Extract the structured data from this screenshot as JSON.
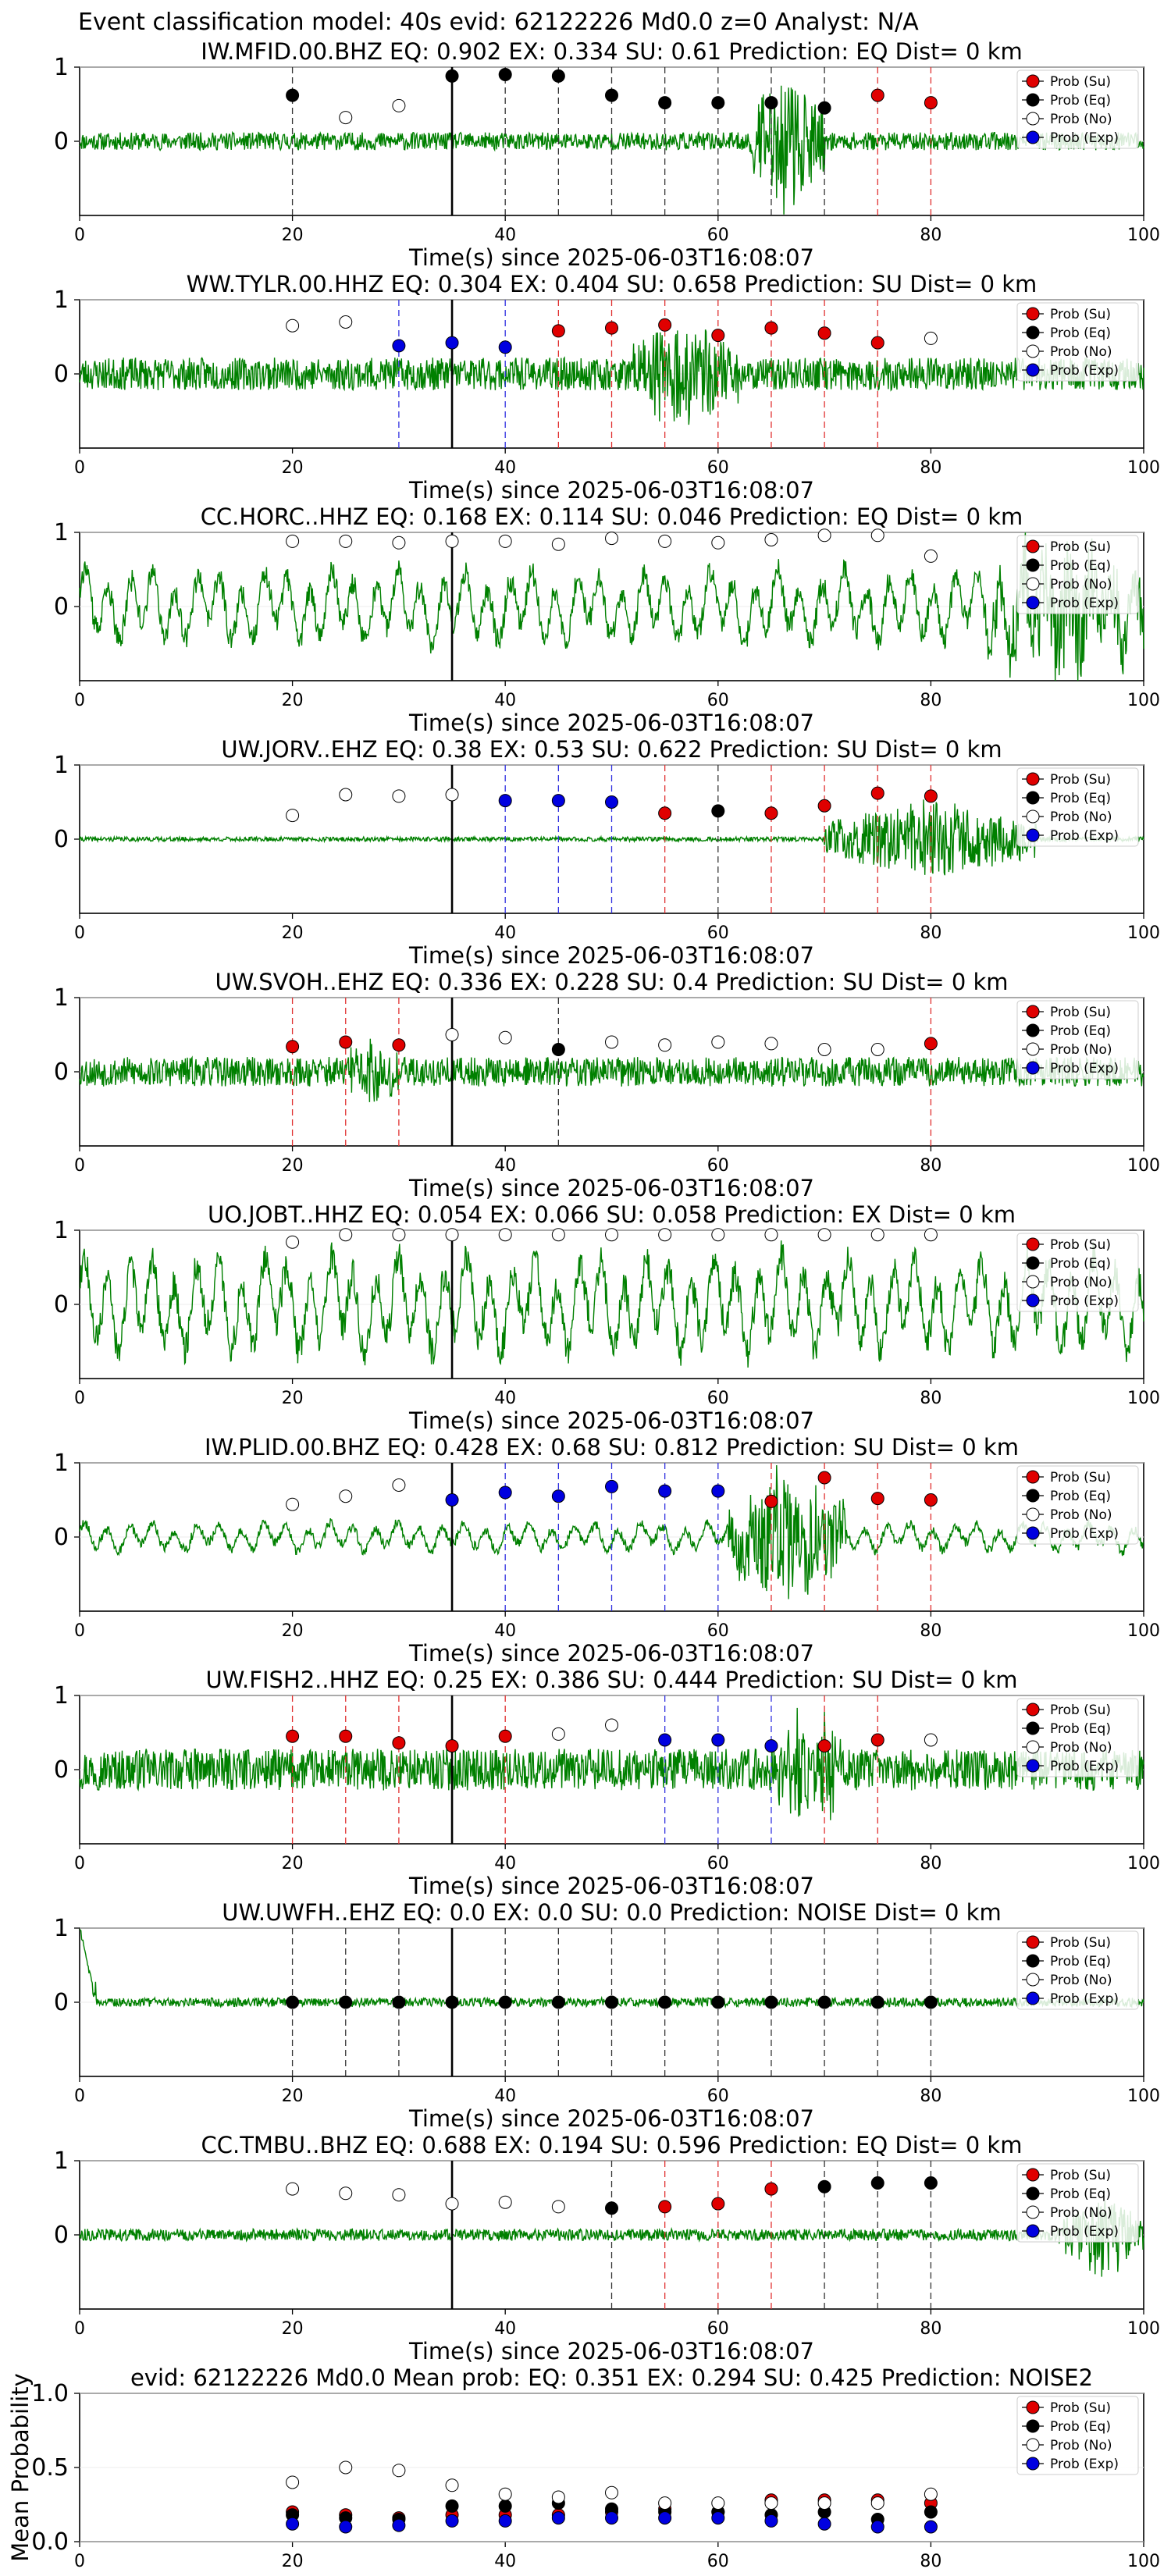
{
  "figure_title": "Event classification model: 40s evid: 62122226 Md0.0 z=0 Analyst: N/A",
  "legend": {
    "entries": [
      {
        "label": "Prob (Su)",
        "color": "#e00000",
        "filled": true
      },
      {
        "label": "Prob (Eq)",
        "color": "#000000",
        "filled": true
      },
      {
        "label": "Prob (No)",
        "color": "#ffffff",
        "filled": false
      },
      {
        "label": "Prob (Exp)",
        "color": "#0000e0",
        "filled": true
      }
    ],
    "placement": "top-right"
  },
  "colors": {
    "waveform": "#008000",
    "su": "#e00000",
    "eq": "#000000",
    "no": "#ffffff",
    "exp": "#0000e0",
    "gridline": "#eeeeee"
  },
  "chart_data": [
    {
      "type": "scatter",
      "title": "IW.MFID.00.BHZ   EQ: 0.902  EX: 0.334  SU: 0.61   Prediction: EQ    Dist= 0 km",
      "xlabel": "Time(s) since 2025-06-03T16:08:07",
      "xlim": [
        0,
        100
      ],
      "ylim": [
        -1,
        1
      ],
      "xticks": [
        "0",
        "20",
        "40",
        "60",
        "80",
        "100"
      ],
      "yticks": [
        "0",
        "1"
      ],
      "origin_time": 35,
      "waveform": {
        "style": "noise-burst",
        "amp": 0.12,
        "burst_start": 63,
        "burst_end": 70,
        "burst_amp": 0.95,
        "seed": 11
      },
      "series": [
        {
          "x": [
            20,
            25,
            30,
            35,
            40,
            45,
            50,
            55,
            60,
            65,
            70,
            75,
            80
          ],
          "y": [
            0.62,
            0.32,
            0.48,
            0.88,
            0.9,
            0.88,
            0.62,
            0.52,
            0.52,
            0.52,
            0.45,
            0.62,
            0.52
          ],
          "cls": [
            "eq",
            "no",
            "no",
            "eq",
            "eq",
            "eq",
            "eq",
            "eq",
            "eq",
            "eq",
            "eq",
            "su",
            "su"
          ]
        }
      ]
    },
    {
      "type": "scatter",
      "title": "WW.TYLR.00.HHZ   EQ: 0.304  EX: 0.404  SU: 0.658   Prediction: SU    Dist= 0 km",
      "xlabel": "Time(s) since 2025-06-03T16:08:07",
      "xlim": [
        0,
        100
      ],
      "ylim": [
        -1,
        1
      ],
      "xticks": [
        "0",
        "20",
        "40",
        "60",
        "80",
        "100"
      ],
      "yticks": [
        "0",
        "1"
      ],
      "origin_time": 35,
      "waveform": {
        "style": "noise-burst",
        "amp": 0.22,
        "burst_start": 52,
        "burst_end": 62,
        "burst_amp": 0.65,
        "seed": 23
      },
      "series": [
        {
          "x": [
            20,
            25,
            30,
            35,
            40,
            45,
            50,
            55,
            60,
            65,
            70,
            75,
            80
          ],
          "y": [
            0.65,
            0.7,
            0.38,
            0.42,
            0.36,
            0.58,
            0.62,
            0.66,
            0.52,
            0.62,
            0.55,
            0.42,
            0.48
          ],
          "cls": [
            "no",
            "no",
            "exp",
            "exp",
            "exp",
            "su",
            "su",
            "su",
            "su",
            "su",
            "su",
            "su",
            "no"
          ]
        }
      ]
    },
    {
      "type": "scatter",
      "title": "CC.HORC..HHZ   EQ: 0.168  EX: 0.114  SU: 0.046   Prediction: EQ    Dist= 0 km",
      "xlabel": "Time(s) since 2025-06-03T16:08:07",
      "xlim": [
        0,
        100
      ],
      "ylim": [
        -1,
        1
      ],
      "xticks": [
        "0",
        "20",
        "40",
        "60",
        "80",
        "100"
      ],
      "yticks": [
        "0",
        "1"
      ],
      "origin_time": 35,
      "waveform": {
        "style": "oscillating",
        "amp": 0.45,
        "burst_start": 85,
        "burst_end": 100,
        "burst_amp": 0.75,
        "seed": 37
      },
      "series": [
        {
          "x": [
            20,
            25,
            30,
            35,
            40,
            45,
            50,
            55,
            60,
            65,
            70,
            75,
            80
          ],
          "y": [
            0.88,
            0.88,
            0.86,
            0.88,
            0.88,
            0.84,
            0.92,
            0.88,
            0.86,
            0.9,
            0.96,
            0.96,
            0.68
          ],
          "cls": [
            "no",
            "no",
            "no",
            "no",
            "no",
            "no",
            "no",
            "no",
            "no",
            "no",
            "no",
            "no",
            "no"
          ]
        }
      ]
    },
    {
      "type": "scatter",
      "title": "UW.JORV..EHZ   EQ: 0.38  EX: 0.53  SU: 0.622   Prediction: SU    Dist= 0 km",
      "xlabel": "Time(s) since 2025-06-03T16:08:07",
      "xlim": [
        0,
        100
      ],
      "ylim": [
        -1,
        1
      ],
      "xticks": [
        "0",
        "20",
        "40",
        "60",
        "80",
        "100"
      ],
      "yticks": [
        "0",
        "1"
      ],
      "origin_time": 35,
      "waveform": {
        "style": "quiet-burst",
        "amp": 0.03,
        "burst_start": 70,
        "burst_end": 90,
        "burst_amp": 0.55,
        "seed": 41
      },
      "series": [
        {
          "x": [
            20,
            25,
            30,
            35,
            40,
            45,
            50,
            55,
            60,
            65,
            70,
            75,
            80
          ],
          "y": [
            0.32,
            0.6,
            0.58,
            0.6,
            0.52,
            0.52,
            0.5,
            0.35,
            0.38,
            0.35,
            0.45,
            0.62,
            0.58
          ],
          "cls": [
            "no",
            "no",
            "no",
            "no",
            "exp",
            "exp",
            "exp",
            "su",
            "eq",
            "su",
            "su",
            "su",
            "su"
          ]
        }
      ]
    },
    {
      "type": "scatter",
      "title": "UW.SVOH..EHZ   EQ: 0.336  EX: 0.228  SU: 0.4   Prediction: SU    Dist= 0 km",
      "xlabel": "Time(s) since 2025-06-03T16:08:07",
      "xlim": [
        0,
        100
      ],
      "ylim": [
        -1,
        1
      ],
      "xticks": [
        "0",
        "20",
        "40",
        "60",
        "80",
        "100"
      ],
      "yticks": [
        "0",
        "1"
      ],
      "origin_time": 35,
      "waveform": {
        "style": "noise-burst",
        "amp": 0.2,
        "burst_start": 25,
        "burst_end": 30,
        "burst_amp": 0.4,
        "seed": 53
      },
      "series": [
        {
          "x": [
            20,
            25,
            30,
            35,
            40,
            45,
            50,
            55,
            60,
            65,
            70,
            75,
            80
          ],
          "y": [
            0.34,
            0.4,
            0.36,
            0.5,
            0.46,
            0.3,
            0.4,
            0.36,
            0.4,
            0.38,
            0.3,
            0.3,
            0.38
          ],
          "cls": [
            "su",
            "su",
            "su",
            "no",
            "no",
            "eq",
            "no",
            "no",
            "no",
            "no",
            "no",
            "no",
            "su"
          ]
        }
      ]
    },
    {
      "type": "scatter",
      "title": "UO.JOBT..HHZ   EQ: 0.054  EX: 0.066  SU: 0.058   Prediction: EX    Dist= 0 km",
      "xlabel": "Time(s) since 2025-06-03T16:08:07",
      "xlim": [
        0,
        100
      ],
      "ylim": [
        -1,
        1
      ],
      "xticks": [
        "0",
        "20",
        "40",
        "60",
        "80",
        "100"
      ],
      "yticks": [
        "0",
        "1"
      ],
      "origin_time": 35,
      "waveform": {
        "style": "oscillating",
        "amp": 0.6,
        "burst_start": 0,
        "burst_end": 0,
        "burst_amp": 0,
        "seed": 67
      },
      "series": [
        {
          "x": [
            20,
            25,
            30,
            35,
            40,
            45,
            50,
            55,
            60,
            65,
            70,
            75,
            80
          ],
          "y": [
            0.84,
            0.94,
            0.94,
            0.94,
            0.94,
            0.94,
            0.94,
            0.94,
            0.94,
            0.94,
            0.94,
            0.94,
            0.94
          ],
          "cls": [
            "no",
            "no",
            "no",
            "no",
            "no",
            "no",
            "no",
            "no",
            "no",
            "no",
            "no",
            "no",
            "no"
          ]
        }
      ]
    },
    {
      "type": "scatter",
      "title": "IW.PLID.00.BHZ   EQ: 0.428  EX: 0.68  SU: 0.812   Prediction: SU    Dist= 0 km",
      "xlabel": "Time(s) since 2025-06-03T16:08:07",
      "xlim": [
        0,
        100
      ],
      "ylim": [
        -1,
        1
      ],
      "xticks": [
        "0",
        "20",
        "40",
        "60",
        "80",
        "100"
      ],
      "yticks": [
        "0",
        "1"
      ],
      "origin_time": 35,
      "waveform": {
        "style": "oscillating",
        "amp": 0.18,
        "burst_start": 61,
        "burst_end": 72,
        "burst_amp": 0.85,
        "seed": 79
      },
      "series": [
        {
          "x": [
            20,
            25,
            30,
            35,
            40,
            45,
            50,
            55,
            60,
            65,
            70,
            75,
            80
          ],
          "y": [
            0.44,
            0.55,
            0.7,
            0.5,
            0.6,
            0.55,
            0.68,
            0.62,
            0.62,
            0.48,
            0.8,
            0.52,
            0.5
          ],
          "cls": [
            "no",
            "no",
            "no",
            "exp",
            "exp",
            "exp",
            "exp",
            "exp",
            "exp",
            "su",
            "su",
            "su",
            "su"
          ]
        }
      ]
    },
    {
      "type": "scatter",
      "title": "UW.FISH2..HHZ   EQ: 0.25  EX: 0.386  SU: 0.444   Prediction: SU    Dist= 0 km",
      "xlabel": "Time(s) since 2025-06-03T16:08:07",
      "xlim": [
        0,
        100
      ],
      "ylim": [
        -1,
        1
      ],
      "xticks": [
        "0",
        "20",
        "40",
        "60",
        "80",
        "100"
      ],
      "yticks": [
        "0",
        "1"
      ],
      "origin_time": 35,
      "waveform": {
        "style": "noise-burst",
        "amp": 0.28,
        "burst_start": 65,
        "burst_end": 72,
        "burst_amp": 0.7,
        "seed": 97
      },
      "series": [
        {
          "x": [
            20,
            25,
            30,
            35,
            40,
            45,
            50,
            55,
            60,
            65,
            70,
            75,
            80
          ],
          "y": [
            0.45,
            0.45,
            0.36,
            0.32,
            0.45,
            0.48,
            0.6,
            0.4,
            0.4,
            0.32,
            0.32,
            0.4,
            0.4
          ],
          "cls": [
            "su",
            "su",
            "su",
            "su",
            "su",
            "no",
            "no",
            "exp",
            "exp",
            "exp",
            "su",
            "su",
            "no"
          ]
        }
      ]
    },
    {
      "type": "scatter",
      "title": "UW.UWFH..EHZ   EQ: 0.0  EX: 0.0  SU: 0.0   Prediction: NOISE    Dist= 0 km",
      "xlabel": "Time(s) since 2025-06-03T16:08:07",
      "xlim": [
        0,
        100
      ],
      "ylim": [
        -1,
        1
      ],
      "xticks": [
        "0",
        "20",
        "40",
        "60",
        "80",
        "100"
      ],
      "yticks": [
        "0",
        "1"
      ],
      "origin_time": 35,
      "waveform": {
        "style": "spike-start",
        "amp": 0.06,
        "burst_start": 0,
        "burst_end": 1.5,
        "burst_amp": 1.0,
        "seed": 103
      },
      "series": [
        {
          "x": [
            20,
            25,
            30,
            35,
            40,
            45,
            50,
            55,
            60,
            65,
            70,
            75,
            80
          ],
          "y": [
            0,
            0,
            0,
            0,
            0,
            0,
            0,
            0,
            0,
            0,
            0,
            0,
            0
          ],
          "cls": [
            "eq",
            "eq",
            "eq",
            "eq",
            "eq",
            "eq",
            "eq",
            "eq",
            "eq",
            "eq",
            "eq",
            "eq",
            "eq"
          ]
        }
      ]
    },
    {
      "type": "scatter",
      "title": "CC.TMBU..BHZ   EQ: 0.688  EX: 0.194  SU: 0.596   Prediction: EQ    Dist= 0 km",
      "xlabel": "Time(s) since 2025-06-03T16:08:07",
      "xlim": [
        0,
        100
      ],
      "ylim": [
        -1,
        1
      ],
      "xticks": [
        "0",
        "20",
        "40",
        "60",
        "80",
        "100"
      ],
      "yticks": [
        "0",
        "1"
      ],
      "origin_time": 35,
      "waveform": {
        "style": "noise-burst",
        "amp": 0.08,
        "burst_start": 92,
        "burst_end": 100,
        "burst_amp": 0.55,
        "seed": 113
      },
      "series": [
        {
          "x": [
            20,
            25,
            30,
            35,
            40,
            45,
            50,
            55,
            60,
            65,
            70,
            75,
            80
          ],
          "y": [
            0.62,
            0.56,
            0.54,
            0.42,
            0.44,
            0.38,
            0.36,
            0.38,
            0.42,
            0.62,
            0.65,
            0.7,
            0.7
          ],
          "cls": [
            "no",
            "no",
            "no",
            "no",
            "no",
            "no",
            "eq",
            "su",
            "su",
            "su",
            "eq",
            "eq",
            "eq"
          ]
        }
      ]
    },
    {
      "type": "scatter",
      "title": "evid: 62122226  Md0.0   Mean prob:   EQ: 0.351  EX: 0.294  SU: 0.425   Prediction: NOISE2",
      "ylabel": "Mean Probability",
      "xlim": [
        0,
        100
      ],
      "ylim": [
        0,
        1
      ],
      "xticks": [
        "0",
        "20",
        "40",
        "60",
        "80",
        "100"
      ],
      "yticks": [
        "0.0",
        "0.5",
        "1.0"
      ],
      "series": [
        {
          "name": "Prob (Su)",
          "cls": "su",
          "x": [
            20,
            25,
            30,
            35,
            40,
            45,
            50,
            55,
            60,
            65,
            70,
            75,
            80
          ],
          "y": [
            0.2,
            0.18,
            0.16,
            0.18,
            0.18,
            0.18,
            0.2,
            0.22,
            0.2,
            0.28,
            0.28,
            0.28,
            0.26
          ]
        },
        {
          "name": "Prob (Eq)",
          "cls": "eq",
          "x": [
            20,
            25,
            30,
            35,
            40,
            45,
            50,
            55,
            60,
            65,
            70,
            75,
            80
          ],
          "y": [
            0.18,
            0.16,
            0.15,
            0.24,
            0.24,
            0.26,
            0.22,
            0.2,
            0.2,
            0.18,
            0.2,
            0.15,
            0.2
          ]
        },
        {
          "name": "Prob (No)",
          "cls": "no",
          "x": [
            20,
            25,
            30,
            35,
            40,
            45,
            50,
            55,
            60,
            65,
            70,
            75,
            80
          ],
          "y": [
            0.4,
            0.5,
            0.48,
            0.38,
            0.32,
            0.3,
            0.33,
            0.26,
            0.26,
            0.26,
            0.26,
            0.26,
            0.32
          ]
        },
        {
          "name": "Prob (Exp)",
          "cls": "exp",
          "x": [
            20,
            25,
            30,
            35,
            40,
            45,
            50,
            55,
            60,
            65,
            70,
            75,
            80
          ],
          "y": [
            0.12,
            0.1,
            0.11,
            0.14,
            0.14,
            0.16,
            0.16,
            0.16,
            0.16,
            0.14,
            0.12,
            0.1,
            0.1
          ]
        }
      ]
    }
  ]
}
